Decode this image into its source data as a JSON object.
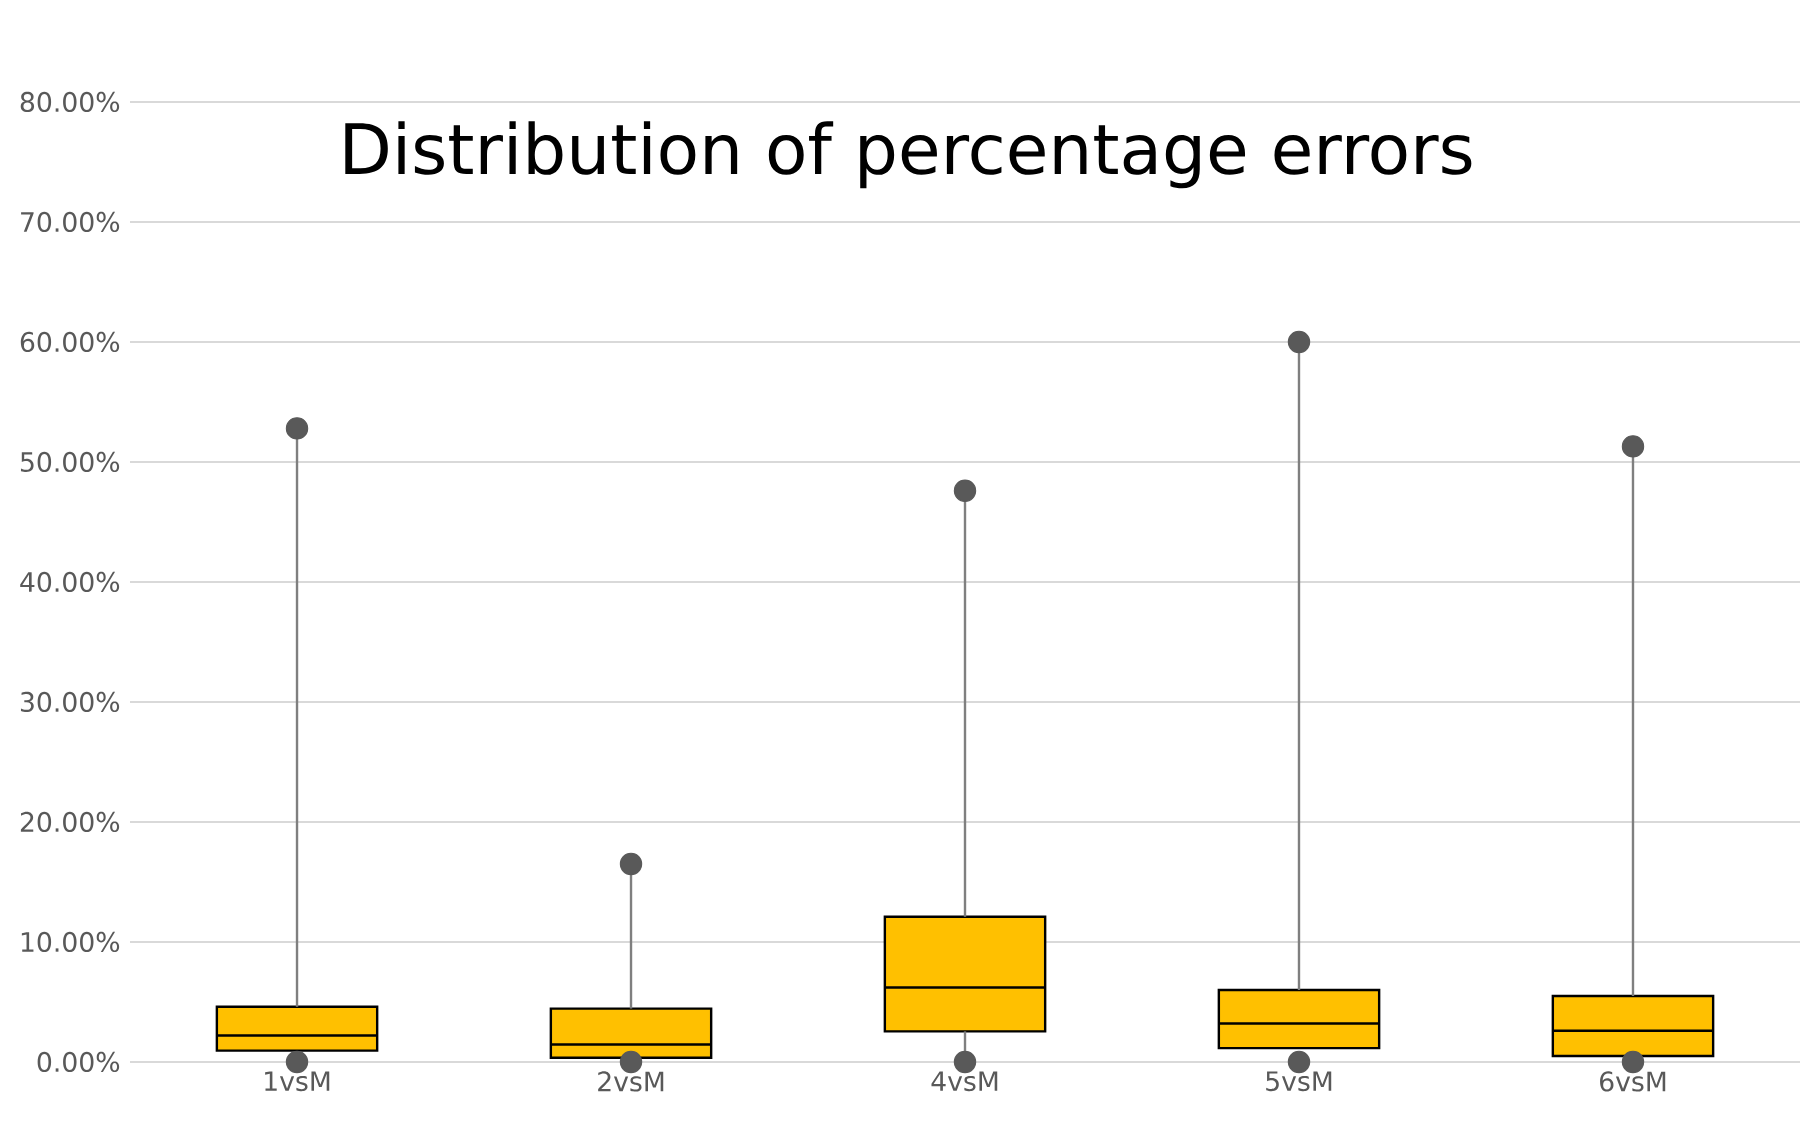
{
  "chart_data": {
    "type": "box",
    "title": "Distribution of percentage errors",
    "categories": [
      "1vsM",
      "2vsM",
      "4vsM",
      "5vsM",
      "6vsM"
    ],
    "color": "#ffc000",
    "boxes": [
      {
        "low": 0.95,
        "q1": 0.95,
        "median": 2.2,
        "q3": 4.6,
        "high": 52.8,
        "outliers": [
          0,
          52.8
        ]
      },
      {
        "low": 0.35,
        "q1": 0.35,
        "median": 1.45,
        "q3": 4.45,
        "high": 16.5,
        "outliers": [
          0,
          16.5
        ]
      },
      {
        "low": 0,
        "q1": 2.55,
        "median": 6.2,
        "q3": 12.1,
        "high": 47.6,
        "outliers": [
          0,
          47.6
        ]
      },
      {
        "low": 1.15,
        "q1": 1.15,
        "median": 3.2,
        "q3": 6.0,
        "high": 60.0,
        "outliers": [
          0,
          60.0
        ]
      },
      {
        "low": 0.5,
        "q1": 0.5,
        "median": 2.6,
        "q3": 5.5,
        "high": 51.3,
        "outliers": [
          0,
          51.3
        ]
      }
    ],
    "ylim": [
      0,
      80
    ],
    "yticks": [
      {
        "value": 0,
        "label": "0.00%"
      },
      {
        "value": 10,
        "label": "10.00%"
      },
      {
        "value": 20,
        "label": "20.00%"
      },
      {
        "value": 30,
        "label": "30.00%"
      },
      {
        "value": 40,
        "label": "40.00%"
      },
      {
        "value": 50,
        "label": "50.00%"
      },
      {
        "value": 60,
        "label": "60.00%"
      },
      {
        "value": 70,
        "label": "70.00%"
      },
      {
        "value": 80,
        "label": "80.00%"
      }
    ],
    "grid": "y",
    "marker": "circle"
  }
}
